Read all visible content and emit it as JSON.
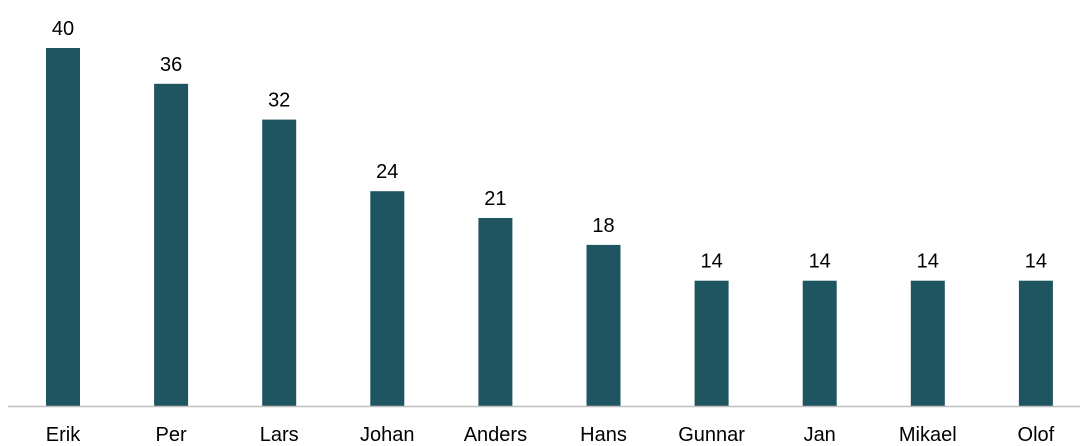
{
  "chart_data": {
    "type": "bar",
    "title": "",
    "xlabel": "",
    "ylabel": "",
    "categories": [
      "Erik",
      "Per",
      "Lars",
      "Johan",
      "Anders",
      "Hans",
      "Gunnar",
      "Jan",
      "Mikael",
      "Olof"
    ],
    "values": [
      40,
      36,
      32,
      24,
      21,
      18,
      14,
      14,
      14,
      14
    ],
    "ylim": [
      0,
      40
    ],
    "grid": false,
    "legend": "none",
    "bar_color": "#1f5560",
    "axis_color": "#bfbfbf",
    "data_labels": true
  }
}
